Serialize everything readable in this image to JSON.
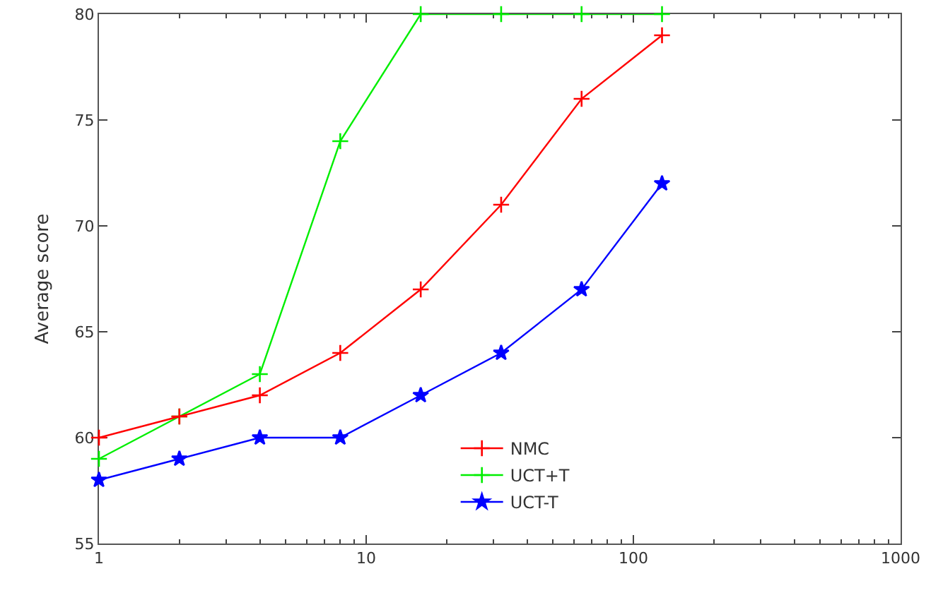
{
  "chart_data": {
    "type": "line",
    "ylabel": "Average score",
    "log": "x",
    "x": [
      1,
      2,
      4,
      8,
      16,
      32,
      64,
      128
    ],
    "xlim": [
      1,
      1000
    ],
    "xticks": [
      1,
      10,
      100,
      1000
    ],
    "ylim": [
      55,
      80
    ],
    "yticks": [
      55,
      60,
      65,
      70,
      75,
      80
    ],
    "grid": false,
    "legend": "bottom",
    "line_style": "solid",
    "series": [
      {
        "name": "NMC",
        "color": "#ff0000",
        "marker": "cross",
        "values": [
          60,
          61,
          62,
          64,
          67,
          71,
          76,
          79
        ]
      },
      {
        "name": "UCT+T",
        "color": "#00ee00",
        "marker": "cross",
        "values": [
          59,
          61,
          63,
          74,
          80,
          80,
          80,
          80
        ]
      },
      {
        "name": "UCT-T",
        "color": "#0000ff",
        "marker": "star",
        "values": [
          58,
          59,
          60,
          60,
          62,
          64,
          67,
          72
        ]
      }
    ]
  }
}
